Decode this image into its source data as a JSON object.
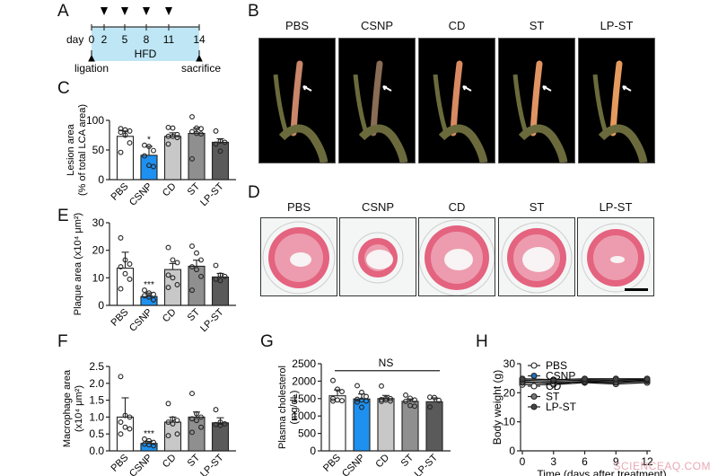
{
  "panels": {
    "A": {
      "letter": "A",
      "timeline": {
        "day_label": "day",
        "ticks": [
          "0",
          "2",
          "5",
          "8",
          "11",
          "14"
        ],
        "treatment_days": [
          "2",
          "5",
          "8",
          "11"
        ],
        "band_label": "HFD",
        "start_event": "ligation",
        "end_event": "sacrifice",
        "band_color": "#bfe6f5"
      }
    },
    "B": {
      "letter": "B",
      "groups": [
        "PBS",
        "CSNP",
        "CD",
        "ST",
        "LP-ST"
      ]
    },
    "D": {
      "letter": "D",
      "groups": [
        "PBS",
        "CSNP",
        "CD",
        "ST",
        "LP-ST"
      ]
    },
    "C": {
      "letter": "C"
    },
    "E": {
      "letter": "E"
    },
    "F": {
      "letter": "F"
    },
    "G": {
      "letter": "G"
    },
    "H": {
      "letter": "H"
    }
  },
  "colors": {
    "PBS": "#ffffff",
    "CSNP": "#1e90f0",
    "CD": "#c8c8c8",
    "ST": "#8f8f8f",
    "LP-ST": "#5a5a5a"
  },
  "watermark": "SCIENCEAQ.COM",
  "chart_data": [
    {
      "id": "C",
      "type": "bar",
      "title": "",
      "categories": [
        "PBS",
        "CSNP",
        "CD",
        "ST",
        "LP-ST"
      ],
      "values": [
        73,
        41,
        73,
        78,
        63
      ],
      "errors": [
        9,
        15,
        6,
        9,
        6
      ],
      "points": [
        [
          86,
          84,
          82,
          80,
          75,
          62,
          46
        ],
        [
          58,
          56,
          49,
          40,
          24,
          22
        ],
        [
          88,
          87,
          76,
          73,
          73,
          71,
          60
        ],
        [
          106,
          87,
          86,
          81,
          78,
          77,
          35
        ],
        [
          82,
          65,
          63,
          60,
          48
        ]
      ],
      "significance": [
        "",
        "*",
        "",
        "",
        ""
      ],
      "xlabel": "",
      "ylabel": "Lesion area (% of total LCA area)",
      "ylim": [
        0,
        120
      ],
      "yticks": [
        0,
        50,
        100
      ]
    },
    {
      "id": "E",
      "type": "bar",
      "categories": [
        "PBS",
        "CSNP",
        "CD",
        "ST",
        "LP-ST"
      ],
      "values": [
        13.5,
        3.2,
        13,
        14.2,
        10.3
      ],
      "errors": [
        5.8,
        1.3,
        2.2,
        2.2,
        1.3
      ],
      "points": [
        [
          24.5,
          16.5,
          15,
          14,
          11.5,
          9.5,
          6
        ],
        [
          5.5,
          4.5,
          4,
          3.5,
          3,
          2
        ],
        [
          21,
          16.5,
          15.5,
          11,
          10,
          7.5,
          6.5
        ],
        [
          21.5,
          19,
          16.5,
          14,
          13,
          10.5,
          5.5
        ],
        [
          14.5,
          11,
          10.5,
          9.5,
          9
        ]
      ],
      "significance": [
        "",
        "***",
        "",
        "",
        ""
      ],
      "ylabel": "Plaque area (x10⁴ μm²)",
      "ylim": [
        0,
        30
      ],
      "yticks": [
        0,
        10,
        20,
        30
      ]
    },
    {
      "id": "F",
      "type": "bar",
      "categories": [
        "PBS",
        "CSNP",
        "CD",
        "ST",
        "LP-ST"
      ],
      "values": [
        1.0,
        0.22,
        0.85,
        1.0,
        0.83
      ],
      "errors": [
        0.57,
        0.06,
        0.15,
        0.15,
        0.15
      ],
      "points": [
        [
          2.2,
          1.05,
          1.0,
          0.85,
          0.7,
          0.65,
          0.5
        ],
        [
          0.35,
          0.3,
          0.25,
          0.2,
          0.18,
          0.15
        ],
        [
          1.4,
          0.95,
          0.9,
          0.85,
          0.8,
          0.5,
          0.45
        ],
        [
          1.7,
          1.1,
          1.0,
          0.95,
          0.9,
          0.7,
          0.55
        ],
        [
          1.22,
          0.85,
          0.8,
          0.78,
          0.75
        ]
      ],
      "significance": [
        "",
        "***",
        "",
        "",
        ""
      ],
      "ylabel": "Macrophage area (x10⁴ μm²)",
      "ylim": [
        0,
        2.5
      ],
      "yticks": [
        "0.0",
        "0.5",
        "1.0",
        "1.5",
        "2.0",
        "2.5"
      ]
    },
    {
      "id": "G",
      "type": "bar",
      "categories": [
        "PBS",
        "CSNP",
        "CD",
        "ST",
        "LP-ST"
      ],
      "values": [
        1580,
        1490,
        1500,
        1420,
        1410
      ],
      "errors": [
        170,
        140,
        90,
        70,
        110
      ],
      "points": [
        [
          2020,
          1770,
          1700,
          1500,
          1460,
          1440,
          1430
        ],
        [
          1870,
          1680,
          1560,
          1480,
          1460,
          1430,
          1400,
          1250
        ],
        [
          1860,
          1510,
          1500,
          1470,
          1460,
          1430,
          1420
        ],
        [
          1600,
          1510,
          1460,
          1420,
          1300,
          1280
        ],
        [
          1540,
          1530,
          1450,
          1260
        ]
      ],
      "annotation": "NS",
      "ylabel": "Plasma cholesterol (mg/dL)",
      "ylim": [
        0,
        2500
      ],
      "yticks": [
        0,
        500,
        1000,
        1500,
        2000,
        2500
      ]
    },
    {
      "id": "H",
      "type": "line",
      "x": [
        0,
        3,
        6,
        9,
        12
      ],
      "series": [
        {
          "name": "PBS",
          "values": [
            22.8,
            22.8,
            23.5,
            23.0,
            23.5
          ],
          "fill": "#ffffff"
        },
        {
          "name": "CSNP",
          "values": [
            23.5,
            23.5,
            23.8,
            23.5,
            24.0
          ],
          "fill": "#1e6fb8"
        },
        {
          "name": "CD",
          "values": [
            23.8,
            23.2,
            24.0,
            23.8,
            24.2
          ],
          "fill": "#ffffff"
        },
        {
          "name": "ST",
          "values": [
            24.3,
            24.0,
            24.4,
            24.3,
            24.5
          ],
          "fill": "#777777"
        },
        {
          "name": "LP-ST",
          "values": [
            24.8,
            24.5,
            24.8,
            24.8,
            24.8
          ],
          "fill": "#444444"
        }
      ],
      "xlabel": "Time (days after treatment)",
      "ylabel": "Body weight (g)",
      "xlim": [
        0,
        12
      ],
      "ylim": [
        0,
        30
      ],
      "xticks": [
        0,
        3,
        6,
        9,
        12
      ],
      "yticks": [
        0,
        10,
        20,
        30
      ],
      "legend_position": "inside-left"
    }
  ]
}
